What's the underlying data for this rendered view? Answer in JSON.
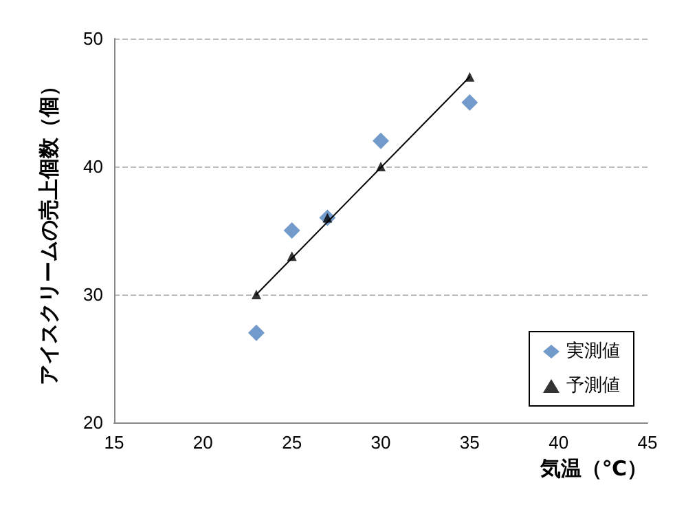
{
  "chart_data": {
    "type": "scatter",
    "xlabel": "気温（℃）",
    "ylabel": "アイスクリームの売上個数（個）",
    "series": [
      {
        "name": "実測値",
        "marker": "diamond",
        "color": "#4f81bd",
        "x": [
          23,
          25,
          27,
          30,
          35
        ],
        "values": [
          27,
          35,
          36,
          42,
          45
        ]
      },
      {
        "name": "予測値",
        "marker": "triangle",
        "color": "#000000",
        "x": [
          23,
          25,
          27,
          30,
          35
        ],
        "values": [
          30,
          33,
          36,
          40,
          47
        ]
      },
      {
        "type": "line",
        "marker": "none",
        "color": "#000000",
        "x": [
          23,
          35
        ],
        "values": [
          30,
          47
        ]
      }
    ],
    "xlim": [
      15,
      45
    ],
    "xticks": [
      15,
      20,
      25,
      30,
      35,
      40,
      45
    ],
    "ylim": [
      20,
      50
    ],
    "yticks": [
      20,
      30,
      40,
      50
    ],
    "grid": "y",
    "legend": "bottom right",
    "line_style": "solid"
  }
}
